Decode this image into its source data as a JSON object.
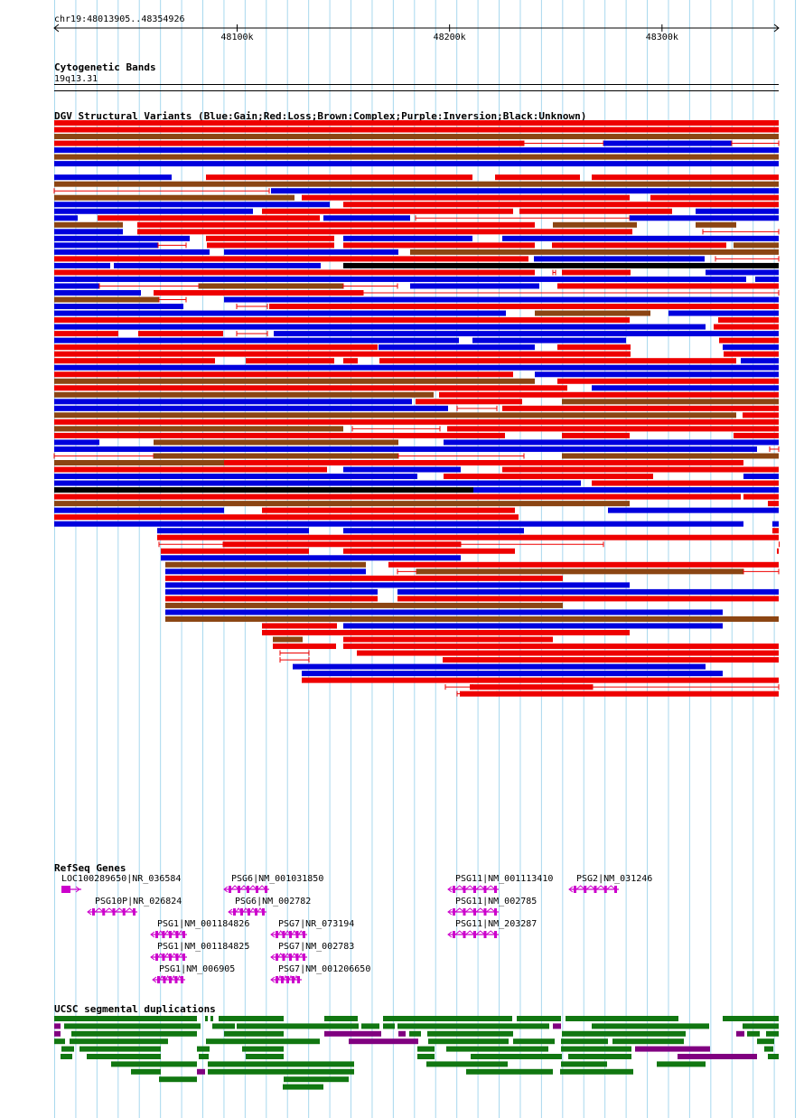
{
  "location": "chr19:48013905..48354926",
  "scale": {
    "start": 48013905,
    "end": 48354926,
    "ticks": [
      {
        "pos": 48100000,
        "label": "48100k"
      },
      {
        "pos": 48200000,
        "label": "48200k"
      },
      {
        "pos": 48300000,
        "label": "48300k"
      }
    ]
  },
  "colors": {
    "gain": "#0000dd",
    "loss": "#ee0000",
    "complex": "#8b4513",
    "inversion": "#800080",
    "unknown": "#000000",
    "gene": "#cc00cc",
    "dup_green": "#117711",
    "dup_purple": "#800080",
    "grid": "#a8d8ee"
  },
  "tracks": {
    "cytoband": {
      "title": "Cytogenetic Bands",
      "band": "19q13.31"
    },
    "dgv": {
      "title": "DGV Structural Variants (Blue:Gain;Red:Loss;Brown:Complex;Purple:Inversion;Black:Unknown)"
    },
    "refseq": {
      "title": "RefSeq Genes",
      "genes": [
        {
          "label": "LOC100289650|NR_036584"
        },
        {
          "label": "PSG10P|NR_026824"
        },
        {
          "label": "PSG1|NM_001184826"
        },
        {
          "label": "PSG1|NM_001184825"
        },
        {
          "label": "PSG1|NM_006905"
        },
        {
          "label": "PSG6|NM_001031850"
        },
        {
          "label": "PSG6|NM_002782"
        },
        {
          "label": "PSG7|NR_073194"
        },
        {
          "label": "PSG7|NM_002783"
        },
        {
          "label": "PSG7|NM_001206650"
        },
        {
          "label": "PSG11|NM_001113410"
        },
        {
          "label": "PSG11|NM_002785"
        },
        {
          "label": "PSG11|NM_203287"
        },
        {
          "label": "PSG2|NM_031246"
        }
      ]
    },
    "segdup": {
      "title": "UCSC segmental duplications"
    }
  }
}
